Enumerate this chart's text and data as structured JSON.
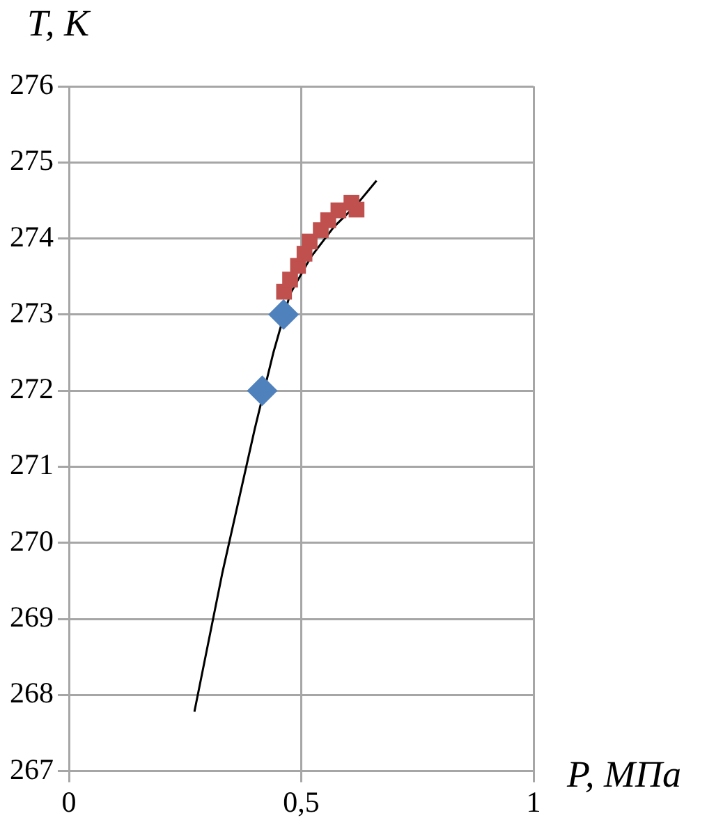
{
  "chart_data": {
    "type": "scatter",
    "xlabel": "P, МПа",
    "ylabel": "T, K",
    "xlim": [
      0,
      1
    ],
    "xticks": [
      0,
      {
        "value": 0.5,
        "label": "0,5"
      },
      1
    ],
    "ylim": [
      267,
      276
    ],
    "yticks": [
      267,
      268,
      269,
      270,
      271,
      272,
      273,
      274,
      275,
      276
    ],
    "grid": true,
    "legend": false,
    "series": [
      {
        "type": "line",
        "color": "#000000",
        "marker": "none",
        "x": [
          0.27,
          0.33,
          0.4,
          0.44,
          0.476,
          0.52,
          0.57,
          0.62,
          0.662
        ],
        "values": [
          267.78,
          269.6,
          271.5,
          272.5,
          273.27,
          273.75,
          274.15,
          274.45,
          274.76
        ]
      },
      {
        "color": "#4f81bd",
        "marker": "diamond",
        "x": [
          0.416,
          0.462
        ],
        "values": [
          272.0,
          273.0
        ]
      },
      {
        "color": "#c0504d",
        "marker": "square",
        "x": [
          0.463,
          0.476,
          0.493,
          0.507,
          0.518,
          0.542,
          0.558,
          0.58,
          0.608,
          0.619
        ],
        "values": [
          273.3,
          273.46,
          273.64,
          273.8,
          273.96,
          274.11,
          274.24,
          274.37,
          274.47,
          274.38
        ]
      }
    ]
  }
}
